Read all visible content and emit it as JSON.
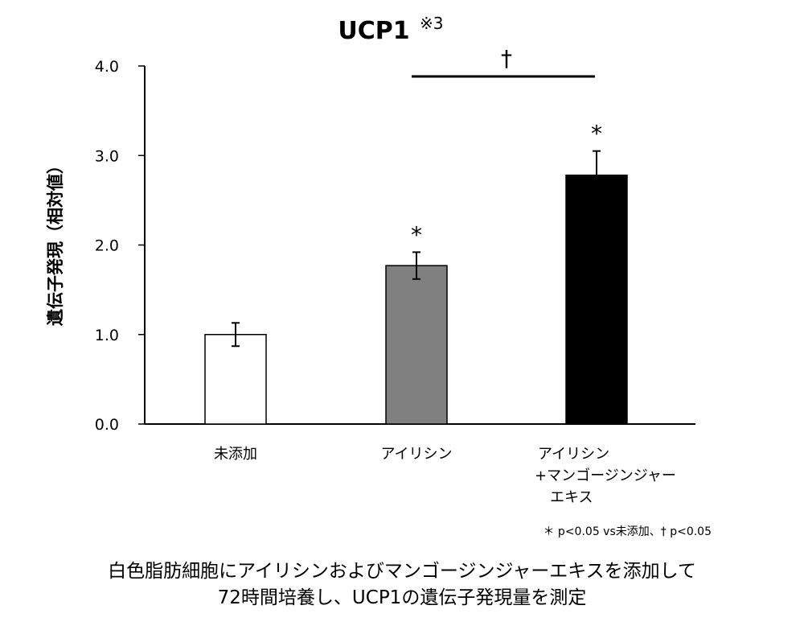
{
  "chart_data": {
    "type": "bar",
    "title": "UCP1",
    "title_note": "※3",
    "ylabel": "遺伝子発現（相対値）",
    "xlabel": "",
    "ylim": [
      0,
      4
    ],
    "yticks": [
      "0.0",
      "1.0",
      "2.0",
      "3.0",
      "4.0"
    ],
    "categories": [
      [
        "未添加"
      ],
      [
        "アイリシン"
      ],
      [
        "アイリシン",
        "+マンゴージンジャー",
        "エキス"
      ]
    ],
    "values": [
      1.0,
      1.77,
      2.78
    ],
    "errors": [
      0.13,
      0.15,
      0.27
    ],
    "bar_colors": [
      "#ffffff",
      "#808080",
      "#000000"
    ],
    "significance": [
      {
        "bar": 1,
        "mark": "*"
      },
      {
        "bar": 2,
        "mark": "*"
      }
    ],
    "bracket": {
      "from": 1,
      "to": 2,
      "mark": "†"
    },
    "footnote": "＊ p<0.05 vs未添加、† p<0.05",
    "grid": false,
    "legend": "none"
  },
  "caption": {
    "line1": "白色脂肪細胞にアイリシンおよびマンゴージンジャーエキスを添加して",
    "line2": "72時間培養し、UCP1の遺伝子発現量を測定"
  }
}
